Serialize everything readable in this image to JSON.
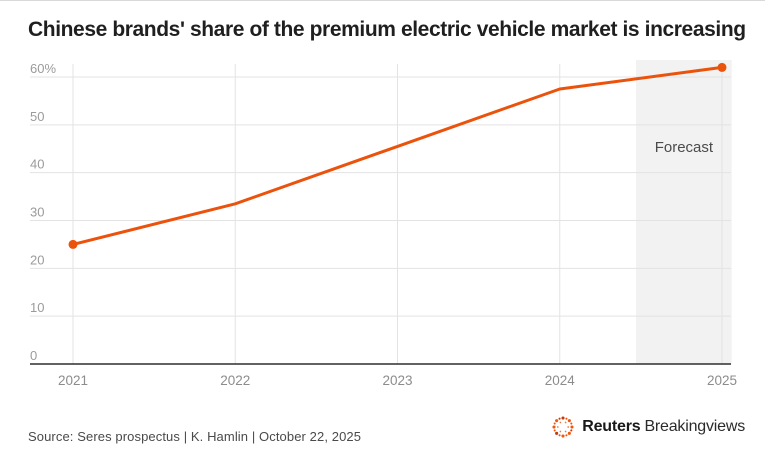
{
  "page": {
    "title": "Chinese brands' share of the premium electric vehicle market is increasing"
  },
  "chart_data": {
    "type": "line",
    "title": "Chinese brands' share of the premium electric vehicle market is increasing",
    "series_name": "Chinese brands' share of premium electric vehicle market (%)",
    "x": [
      2021,
      2022,
      2023,
      2024,
      2025
    ],
    "values": [
      25,
      33.5,
      45.5,
      57.5,
      62
    ],
    "unit": "%",
    "ylim": [
      0,
      62
    ],
    "yticks": [
      0,
      10,
      20,
      30,
      40,
      50,
      60
    ],
    "ytick_labels": [
      "0",
      "10",
      "20",
      "30",
      "40",
      "50",
      "60%"
    ],
    "xtick_labels": [
      "2021",
      "2022",
      "2023",
      "2024",
      "2025"
    ],
    "grid": true,
    "legend": "none",
    "forecast": {
      "label": "Forecast",
      "x_start": 2024.47,
      "x_end": 2025.06
    },
    "colors": {
      "line": "#eb530c",
      "point": "#eb530c",
      "forecast_band": "#f2f2f2",
      "gridline": "#e3e3e3",
      "axis": "#2e2e2e",
      "tick_label": "#9b9b9b",
      "forecast_label": "#4b4b4b"
    }
  },
  "footer": {
    "source": "Source: Seres prospectus | K. Hamlin | October 22, 2025",
    "logo": {
      "brand": "Reuters",
      "suffix": "Breakingviews",
      "icon": "reuters-dotted-circle",
      "icon_color": "#f1560b"
    }
  }
}
